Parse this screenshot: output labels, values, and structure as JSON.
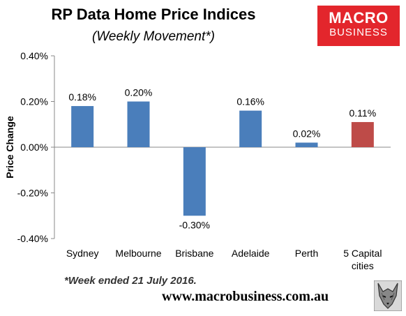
{
  "brand": {
    "logo_line1": "MACRO",
    "logo_line2": "BUSINESS",
    "url": "www.macrobusiness.com.au",
    "logo_color": "#e3262c",
    "mascot_icon": "wolf-icon"
  },
  "footnote": "*Week ended 21 July 2016.",
  "chart_data": {
    "type": "bar",
    "title": "RP Data Home Price Indices",
    "subtitle": "(Weekly Movement*)",
    "xlabel": "",
    "ylabel": "Price Change",
    "ylim": [
      -0.4,
      0.4
    ],
    "yticks": [
      0.4,
      0.2,
      0.0,
      -0.2,
      -0.4
    ],
    "ytick_labels": [
      "0.40%",
      "0.20%",
      "0.00%",
      "-0.20%",
      "-0.40%"
    ],
    "categories": [
      [
        "Sydney"
      ],
      [
        "Melbourne"
      ],
      [
        "Brisbane"
      ],
      [
        "Adelaide"
      ],
      [
        "Perth"
      ],
      [
        "5 Capital",
        "cities"
      ]
    ],
    "values": [
      0.18,
      0.2,
      -0.3,
      0.16,
      0.02,
      0.11
    ],
    "data_labels": [
      "0.18%",
      "0.20%",
      "-0.30%",
      "0.16%",
      "0.02%",
      "0.11%"
    ],
    "bar_colors": [
      "#4a7ebb",
      "#4a7ebb",
      "#4a7ebb",
      "#4a7ebb",
      "#4a7ebb",
      "#be4b48"
    ],
    "grid": false,
    "legend": "none"
  }
}
